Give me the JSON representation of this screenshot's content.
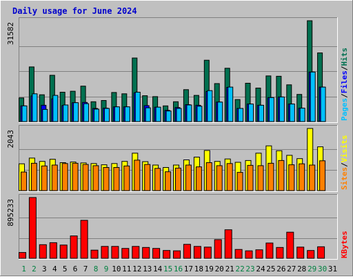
{
  "title": "Daily usage for June 2024",
  "colors": {
    "frame_bg": "#c0c0c0",
    "title": "#0000cc",
    "hits": "#007050",
    "files": "#0000ff",
    "pages": "#00c0ff",
    "visits": "#ffff00",
    "sites": "#ff8000",
    "kbytes": "#ff0000",
    "weekend": "#008040",
    "weekday": "#000000"
  },
  "legend": {
    "hits": "Hits",
    "files": "Files",
    "pages": "Pages",
    "visits": "Visits",
    "sites": "Sites",
    "kbytes": "KBytes",
    "sep": "/"
  },
  "chart_data": [
    {
      "type": "bar",
      "categories": [
        "1",
        "2",
        "3",
        "4",
        "5",
        "6",
        "7",
        "8",
        "9",
        "10",
        "11",
        "12",
        "13",
        "14",
        "15",
        "16",
        "17",
        "18",
        "19",
        "20",
        "21",
        "22",
        "23",
        "24",
        "25",
        "26",
        "27",
        "28",
        "29",
        "30",
        "31"
      ],
      "weekend_days": [
        1,
        2,
        8,
        9,
        15,
        16,
        22,
        23,
        29,
        30
      ],
      "ylim": [
        0,
        31582
      ],
      "max_label": "31582",
      "series": [
        {
          "name": "Hits",
          "values": [
            7400,
            17100,
            8400,
            14500,
            9200,
            9500,
            11100,
            6200,
            6600,
            9100,
            8700,
            19900,
            8100,
            7800,
            4900,
            6200,
            10000,
            8200,
            19200,
            11900,
            16700,
            6900,
            12000,
            10500,
            14300,
            14200,
            11500,
            8500,
            31582,
            21500,
            0
          ]
        },
        {
          "name": "Files",
          "values": [
            4900,
            8000,
            5100,
            7100,
            5000,
            5900,
            6000,
            4100,
            4200,
            4600,
            4600,
            9000,
            5000,
            4500,
            3500,
            4400,
            5300,
            5100,
            9400,
            6100,
            10700,
            4100,
            5500,
            5100,
            7500,
            7700,
            5500,
            4200,
            15500,
            10800,
            0
          ]
        },
        {
          "name": "Pages",
          "values": [
            4900,
            8700,
            3800,
            8200,
            5200,
            5900,
            5600,
            3900,
            4100,
            4600,
            4600,
            9200,
            4300,
            4500,
            3300,
            4100,
            5200,
            4800,
            9700,
            6100,
            10800,
            4100,
            5500,
            5100,
            7500,
            7700,
            5500,
            4200,
            15500,
            10800,
            0
          ]
        }
      ]
    },
    {
      "type": "bar",
      "categories": [
        "1",
        "2",
        "3",
        "4",
        "5",
        "6",
        "7",
        "8",
        "9",
        "10",
        "11",
        "12",
        "13",
        "14",
        "15",
        "16",
        "17",
        "18",
        "19",
        "20",
        "21",
        "22",
        "23",
        "24",
        "25",
        "26",
        "27",
        "28",
        "29",
        "30",
        "31"
      ],
      "ylim": [
        0,
        2043
      ],
      "max_label": "2043",
      "series": [
        {
          "name": "Visits",
          "values": [
            880,
            1070,
            960,
            1030,
            920,
            940,
            910,
            890,
            850,
            890,
            960,
            1230,
            950,
            840,
            760,
            840,
            1010,
            1100,
            1320,
            960,
            1040,
            930,
            990,
            1230,
            1470,
            1310,
            1160,
            1050,
            2043,
            1440,
            0
          ]
        },
        {
          "name": "Sites",
          "values": [
            610,
            900,
            810,
            840,
            890,
            900,
            860,
            820,
            760,
            760,
            810,
            1000,
            860,
            730,
            620,
            740,
            840,
            780,
            920,
            820,
            890,
            600,
            830,
            820,
            900,
            990,
            850,
            880,
            840,
            980,
            0
          ]
        }
      ]
    },
    {
      "type": "bar",
      "categories": [
        "1",
        "2",
        "3",
        "4",
        "5",
        "6",
        "7",
        "8",
        "9",
        "10",
        "11",
        "12",
        "13",
        "14",
        "15",
        "16",
        "17",
        "18",
        "19",
        "20",
        "21",
        "22",
        "23",
        "24",
        "25",
        "26",
        "27",
        "28",
        "29",
        "30",
        "31"
      ],
      "ylim": [
        0,
        895233
      ],
      "max_label": "895233",
      "series": [
        {
          "name": "KBytes",
          "values": [
            85000,
            895233,
            200000,
            230000,
            195000,
            330000,
            560000,
            120000,
            175000,
            175000,
            145000,
            175000,
            160000,
            145000,
            115000,
            110000,
            205000,
            175000,
            165000,
            275000,
            420000,
            130000,
            110000,
            125000,
            225000,
            160000,
            385000,
            165000,
            115000,
            170000,
            0
          ]
        }
      ]
    }
  ]
}
